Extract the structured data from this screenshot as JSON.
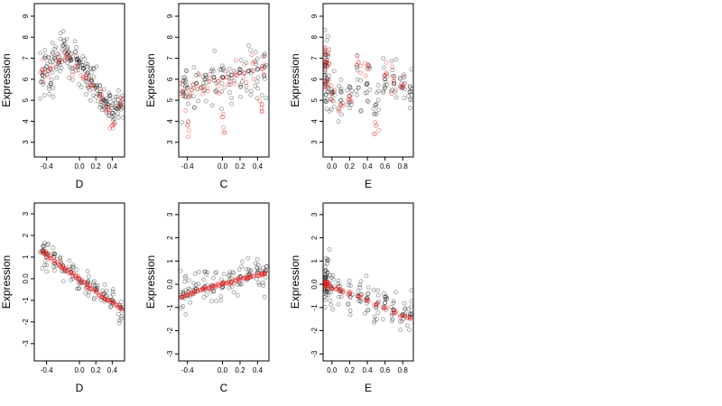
{
  "chart_data": [
    {
      "type": "scatter",
      "id": "top-D",
      "xlabel": "D",
      "ylabel": "Expression",
      "xlim": [
        -0.55,
        0.55
      ],
      "ylim": [
        2.3,
        9.6
      ],
      "xticks": [
        -0.4,
        0.0,
        0.2,
        0.4
      ],
      "yticks": [
        3,
        4,
        5,
        6,
        7,
        8,
        9
      ],
      "series": [
        {
          "color": "#000000",
          "spread": 0.9,
          "points": [
            [
              -0.45,
              6.2
            ],
            [
              -0.4,
              6.6
            ],
            [
              -0.35,
              5.8
            ],
            [
              -0.3,
              7.0
            ],
            [
              -0.25,
              6.8
            ],
            [
              -0.2,
              7.6
            ],
            [
              -0.15,
              7.2
            ],
            [
              -0.1,
              6.9
            ],
            [
              -0.05,
              7.3
            ],
            [
              0.0,
              6.8
            ],
            [
              0.05,
              6.5
            ],
            [
              0.1,
              6.3
            ],
            [
              0.15,
              5.9
            ],
            [
              0.2,
              5.6
            ],
            [
              0.25,
              5.3
            ],
            [
              0.3,
              5.0
            ],
            [
              0.35,
              4.8
            ],
            [
              0.4,
              4.4
            ],
            [
              0.45,
              4.6
            ],
            [
              0.5,
              4.8
            ]
          ]
        },
        {
          "color": "#e8201f",
          "spread": 0.5,
          "points": [
            [
              -0.45,
              6.3
            ],
            [
              -0.35,
              6.5
            ],
            [
              -0.25,
              6.9
            ],
            [
              -0.15,
              7.0
            ],
            [
              -0.05,
              6.6
            ],
            [
              0.05,
              6.1
            ],
            [
              0.15,
              5.7
            ],
            [
              0.25,
              5.2
            ],
            [
              0.35,
              4.7
            ],
            [
              0.4,
              3.8
            ],
            [
              0.5,
              4.9
            ]
          ]
        }
      ]
    },
    {
      "type": "scatter",
      "id": "top-C",
      "xlabel": "C",
      "ylabel": "Expression",
      "xlim": [
        -0.5,
        0.53
      ],
      "ylim": [
        2.3,
        9.6
      ],
      "xticks": [
        -0.4,
        0.0,
        0.2,
        0.4
      ],
      "yticks": [
        3,
        4,
        5,
        6,
        7,
        8,
        9
      ],
      "series": [
        {
          "color": "#000000",
          "spread": 1.3,
          "points": [
            [
              -0.45,
              5.4
            ],
            [
              -0.4,
              5.6
            ],
            [
              -0.3,
              5.8
            ],
            [
              -0.2,
              6.0
            ],
            [
              -0.1,
              6.1
            ],
            [
              0.0,
              6.1
            ],
            [
              0.1,
              6.2
            ],
            [
              0.2,
              6.3
            ],
            [
              0.3,
              6.4
            ],
            [
              0.4,
              6.5
            ],
            [
              0.48,
              6.6
            ]
          ]
        },
        {
          "color": "#e8201f",
          "spread": 0.8,
          "points": [
            [
              -0.45,
              5.2
            ],
            [
              -0.35,
              5.5
            ],
            [
              -0.25,
              5.6
            ],
            [
              -0.15,
              5.9
            ],
            [
              -0.05,
              5.9
            ],
            [
              0.05,
              6.1
            ],
            [
              0.15,
              6.2
            ],
            [
              0.25,
              6.3
            ],
            [
              0.35,
              6.4
            ],
            [
              0.45,
              6.5
            ],
            [
              -0.4,
              3.8
            ],
            [
              0.0,
              4.2
            ],
            [
              0.45,
              4.8
            ]
          ]
        }
      ]
    },
    {
      "type": "scatter",
      "id": "top-E",
      "xlabel": "E",
      "ylabel": "Expression",
      "xlim": [
        -0.1,
        0.92
      ],
      "ylim": [
        2.3,
        9.6
      ],
      "xticks": [
        0.0,
        0.2,
        0.4,
        0.6,
        0.8
      ],
      "yticks": [
        3,
        4,
        5,
        6,
        7,
        8,
        9
      ],
      "series": [
        {
          "color": "#000000",
          "spread": 1.2,
          "points": [
            [
              -0.08,
              6.2
            ],
            [
              -0.07,
              5.8
            ],
            [
              -0.06,
              6.8
            ],
            [
              -0.05,
              5.4
            ],
            [
              0.0,
              5.4
            ],
            [
              0.1,
              5.0
            ],
            [
              0.2,
              5.2
            ],
            [
              0.3,
              5.6
            ],
            [
              0.4,
              5.8
            ],
            [
              0.5,
              4.8
            ],
            [
              0.6,
              6.0
            ],
            [
              0.7,
              5.8
            ],
            [
              0.8,
              5.6
            ],
            [
              0.88,
              5.4
            ]
          ]
        },
        {
          "color": "#e8201f",
          "spread": 0.6,
          "points": [
            [
              -0.08,
              6.5
            ],
            [
              -0.07,
              7.2
            ],
            [
              -0.06,
              5.9
            ],
            [
              -0.06,
              6.9
            ],
            [
              0.0,
              5.3
            ],
            [
              0.1,
              4.8
            ],
            [
              0.2,
              5.0
            ],
            [
              0.3,
              6.8
            ],
            [
              0.4,
              6.5
            ],
            [
              0.5,
              3.8
            ],
            [
              0.6,
              6.2
            ],
            [
              0.7,
              5.9
            ],
            [
              0.8,
              5.7
            ]
          ]
        }
      ]
    },
    {
      "type": "scatter",
      "id": "bottom-D",
      "xlabel": "D",
      "ylabel": "Expression",
      "xlim": [
        -0.55,
        0.55
      ],
      "ylim": [
        -3.8,
        3.5
      ],
      "xticks": [
        -0.4,
        0.0,
        0.2,
        0.4
      ],
      "yticks": [
        -3,
        -2,
        -1,
        0,
        1,
        2,
        3
      ],
      "series": [
        {
          "color": "#000000",
          "spread": 0.7,
          "points": [
            [
              -0.45,
              1.3
            ],
            [
              -0.4,
              1.0
            ],
            [
              -0.3,
              0.7
            ],
            [
              -0.2,
              0.6
            ],
            [
              -0.1,
              0.3
            ],
            [
              0.0,
              0.0
            ],
            [
              0.1,
              -0.2
            ],
            [
              0.2,
              -0.5
            ],
            [
              0.3,
              -0.7
            ],
            [
              0.4,
              -1.0
            ],
            [
              0.5,
              -1.3
            ]
          ]
        },
        {
          "color": "#e8201f",
          "spread": 0.1,
          "points": [
            [
              -0.45,
              1.25
            ],
            [
              -0.4,
              1.1
            ],
            [
              -0.35,
              0.95
            ],
            [
              -0.3,
              0.8
            ],
            [
              -0.25,
              0.65
            ],
            [
              -0.2,
              0.5
            ],
            [
              -0.15,
              0.4
            ],
            [
              -0.1,
              0.25
            ],
            [
              -0.05,
              0.12
            ],
            [
              0.0,
              0.0
            ],
            [
              0.05,
              -0.15
            ],
            [
              0.1,
              -0.3
            ],
            [
              0.15,
              -0.45
            ],
            [
              0.2,
              -0.6
            ],
            [
              0.25,
              -0.75
            ],
            [
              0.3,
              -0.9
            ],
            [
              0.35,
              -1.0
            ],
            [
              0.4,
              -1.1
            ],
            [
              0.45,
              -1.2
            ],
            [
              0.5,
              -1.35
            ]
          ]
        }
      ]
    },
    {
      "type": "scatter",
      "id": "bottom-C",
      "xlabel": "C",
      "ylabel": "Expression",
      "xlim": [
        -0.5,
        0.53
      ],
      "ylim": [
        -3.3,
        3.5
      ],
      "xticks": [
        -0.4,
        0.0,
        0.2,
        0.4
      ],
      "yticks": [
        -3,
        -2,
        -1,
        0,
        1,
        2,
        3
      ],
      "series": [
        {
          "color": "#000000",
          "spread": 0.8,
          "points": [
            [
              -0.45,
              -0.4
            ],
            [
              -0.4,
              -0.5
            ],
            [
              -0.3,
              -0.2
            ],
            [
              -0.2,
              -0.1
            ],
            [
              -0.1,
              -0.3
            ],
            [
              0.0,
              0.0
            ],
            [
              0.1,
              0.1
            ],
            [
              0.2,
              0.3
            ],
            [
              0.3,
              0.4
            ],
            [
              0.4,
              0.5
            ],
            [
              0.48,
              0.5
            ]
          ]
        },
        {
          "color": "#e8201f",
          "spread": 0.08,
          "points": [
            [
              -0.45,
              -0.55
            ],
            [
              -0.4,
              -0.45
            ],
            [
              -0.35,
              -0.4
            ],
            [
              -0.3,
              -0.3
            ],
            [
              -0.25,
              -0.25
            ],
            [
              -0.2,
              -0.2
            ],
            [
              -0.15,
              -0.15
            ],
            [
              -0.1,
              -0.08
            ],
            [
              -0.05,
              -0.03
            ],
            [
              0.0,
              0.0
            ],
            [
              0.05,
              0.05
            ],
            [
              0.1,
              0.1
            ],
            [
              0.15,
              0.15
            ],
            [
              0.2,
              0.2
            ],
            [
              0.25,
              0.25
            ],
            [
              0.3,
              0.3
            ],
            [
              0.35,
              0.33
            ],
            [
              0.4,
              0.37
            ],
            [
              0.45,
              0.4
            ],
            [
              0.48,
              0.45
            ]
          ]
        }
      ]
    },
    {
      "type": "scatter",
      "id": "bottom-E",
      "xlabel": "E",
      "ylabel": "Expression",
      "xlim": [
        -0.1,
        0.92
      ],
      "ylim": [
        -3.3,
        3.5
      ],
      "xticks": [
        0.0,
        0.2,
        0.4,
        0.6,
        0.8
      ],
      "yticks": [
        -3,
        -2,
        -1,
        0,
        1,
        2,
        3
      ],
      "series": [
        {
          "color": "#000000",
          "spread": 0.9,
          "points": [
            [
              -0.08,
              0.0
            ],
            [
              -0.07,
              0.3
            ],
            [
              -0.06,
              -0.3
            ],
            [
              -0.05,
              0.5
            ],
            [
              0.0,
              -0.2
            ],
            [
              0.1,
              -0.3
            ],
            [
              0.2,
              -0.4
            ],
            [
              0.3,
              -0.5
            ],
            [
              0.4,
              -0.6
            ],
            [
              0.5,
              -1.0
            ],
            [
              0.6,
              -0.8
            ],
            [
              0.7,
              -1.1
            ],
            [
              0.8,
              -1.3
            ],
            [
              0.88,
              -1.4
            ]
          ]
        },
        {
          "color": "#e8201f",
          "spread": 0.08,
          "points": [
            [
              -0.08,
              0.05
            ],
            [
              -0.07,
              -0.05
            ],
            [
              -0.06,
              0.0
            ],
            [
              -0.05,
              0.1
            ],
            [
              0.0,
              -0.15
            ],
            [
              0.05,
              -0.2
            ],
            [
              0.1,
              -0.3
            ],
            [
              0.2,
              -0.4
            ],
            [
              0.3,
              -0.55
            ],
            [
              0.4,
              -0.7
            ],
            [
              0.5,
              -0.9
            ],
            [
              0.6,
              -1.0
            ],
            [
              0.7,
              -1.2
            ],
            [
              0.8,
              -1.35
            ],
            [
              0.88,
              -1.45
            ]
          ]
        }
      ]
    }
  ]
}
